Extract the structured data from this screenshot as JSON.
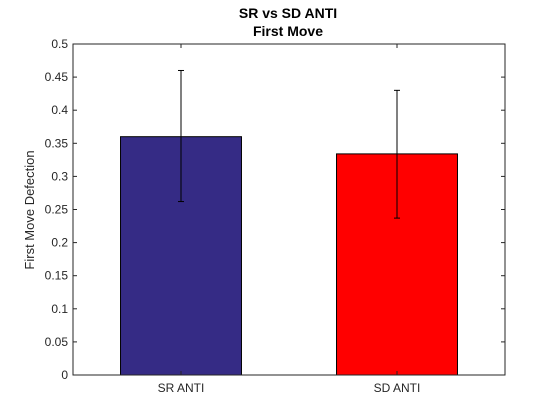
{
  "chart_data": {
    "type": "bar",
    "title": "SR vs SD ANTI",
    "subtitle": "First Move",
    "xlabel": "",
    "ylabel": "First Move Defection",
    "categories": [
      "SR ANTI",
      "SD ANTI"
    ],
    "values": [
      0.36,
      0.334
    ],
    "error_low": [
      0.262,
      0.237
    ],
    "error_high": [
      0.46,
      0.43
    ],
    "colors": [
      "#352b85",
      "#ff0000"
    ],
    "ylim": [
      0,
      0.5
    ],
    "yticks": [
      0,
      0.05,
      0.1,
      0.15,
      0.2,
      0.25,
      0.3,
      0.35,
      0.4,
      0.45,
      0.5
    ],
    "ytick_labels": [
      "0",
      "0.05",
      "0.1",
      "0.15",
      "0.2",
      "0.25",
      "0.3",
      "0.35",
      "0.4",
      "0.45",
      "0.5"
    ],
    "grid": false,
    "legend": "none"
  }
}
